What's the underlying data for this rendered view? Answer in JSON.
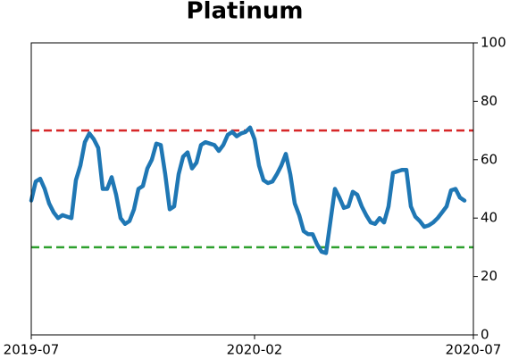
{
  "chart_data": {
    "type": "line",
    "title": "Platinum",
    "categories": [
      "2019-07",
      null,
      null,
      null,
      null,
      null,
      null,
      null,
      null,
      null,
      null,
      null,
      null,
      null,
      null,
      null,
      null,
      null,
      null,
      null,
      null,
      null,
      null,
      null,
      null,
      null,
      null,
      null,
      null,
      null,
      null,
      null,
      null,
      null,
      null,
      null,
      null,
      null,
      null,
      null,
      null,
      null,
      null,
      null,
      null,
      null,
      null,
      null,
      null,
      null,
      "2020-02",
      null,
      null,
      null,
      null,
      null,
      null,
      null,
      null,
      null,
      null,
      null,
      null,
      null,
      null,
      null,
      null,
      null,
      null,
      null,
      null,
      null,
      null,
      null,
      null,
      null,
      null,
      null,
      null,
      null,
      null,
      null,
      null,
      null,
      null,
      null,
      null,
      null,
      null,
      null,
      null,
      null,
      null,
      null,
      null,
      null,
      null,
      null,
      null,
      "2020-07"
    ],
    "series": [
      {
        "color": "#1f77b4",
        "values": [
          46,
          52.5,
          53.5,
          50,
          45,
          42,
          40,
          41,
          40.5,
          40,
          53,
          58,
          66,
          69,
          67,
          64,
          50,
          50,
          54,
          48,
          40,
          38,
          39,
          43,
          50,
          51,
          57,
          60,
          65.5,
          65,
          55,
          43,
          44,
          55,
          61,
          62.5,
          57,
          59,
          65,
          66,
          65.5,
          65,
          63,
          65,
          68.5,
          69.5,
          68,
          69,
          69.5,
          71,
          67,
          58,
          53,
          52,
          52.5,
          55,
          58,
          62,
          55,
          45,
          41,
          35.5,
          34.5,
          34.5,
          31,
          28.5,
          28,
          39,
          50,
          47,
          43.5,
          44,
          49,
          48,
          44,
          41,
          38.5,
          38,
          40,
          38.5,
          44,
          55.5,
          56,
          56.5,
          56.5,
          44,
          40.5,
          39,
          37,
          37.5,
          38.5,
          40,
          42,
          44,
          49.5,
          50,
          47,
          46,
          null,
          null
        ]
      }
    ],
    "reference_lines": [
      {
        "value": 70,
        "color": "#d62728"
      },
      {
        "value": 30,
        "color": "#2ca02c"
      }
    ],
    "ylim": [
      0,
      100
    ],
    "yticks": [
      0,
      20,
      40,
      60,
      80,
      100
    ],
    "y_axis_side": "right"
  }
}
